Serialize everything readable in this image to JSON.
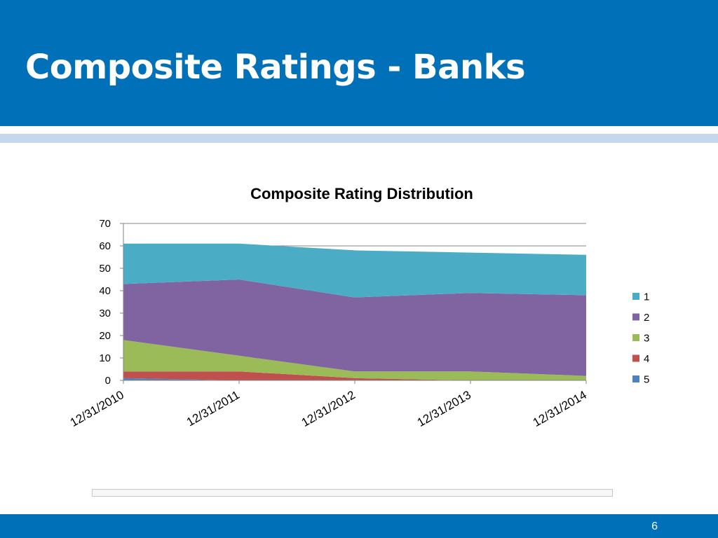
{
  "slide": {
    "title": "Composite Ratings - Banks",
    "page_number": "6",
    "colors": {
      "header": "#0070b9",
      "accent_band": "#c5d7ec"
    }
  },
  "chart_data": {
    "type": "area",
    "stacked": true,
    "title": "Composite Rating Distribution",
    "xlabel": "",
    "ylabel": "",
    "categories": [
      "12/31/2010",
      "12/31/2011",
      "12/31/2012",
      "12/31/2013",
      "12/31/2014"
    ],
    "ylim": [
      0,
      70
    ],
    "yticks": [
      0,
      10,
      20,
      30,
      40,
      50,
      60,
      70
    ],
    "grid": true,
    "legend_position": "right",
    "series": [
      {
        "name": "5",
        "color": "#4f81bd",
        "values": [
          1,
          0,
          0,
          0,
          0
        ]
      },
      {
        "name": "4",
        "color": "#c0504d",
        "values": [
          3,
          4,
          1,
          0,
          0
        ]
      },
      {
        "name": "3",
        "color": "#9bbb59",
        "values": [
          14,
          7,
          3,
          4,
          2
        ]
      },
      {
        "name": "2",
        "color": "#8064a2",
        "values": [
          25,
          34,
          33,
          35,
          36
        ]
      },
      {
        "name": "1",
        "color": "#4bacc6",
        "values": [
          18,
          16,
          21,
          18,
          18
        ]
      }
    ]
  }
}
